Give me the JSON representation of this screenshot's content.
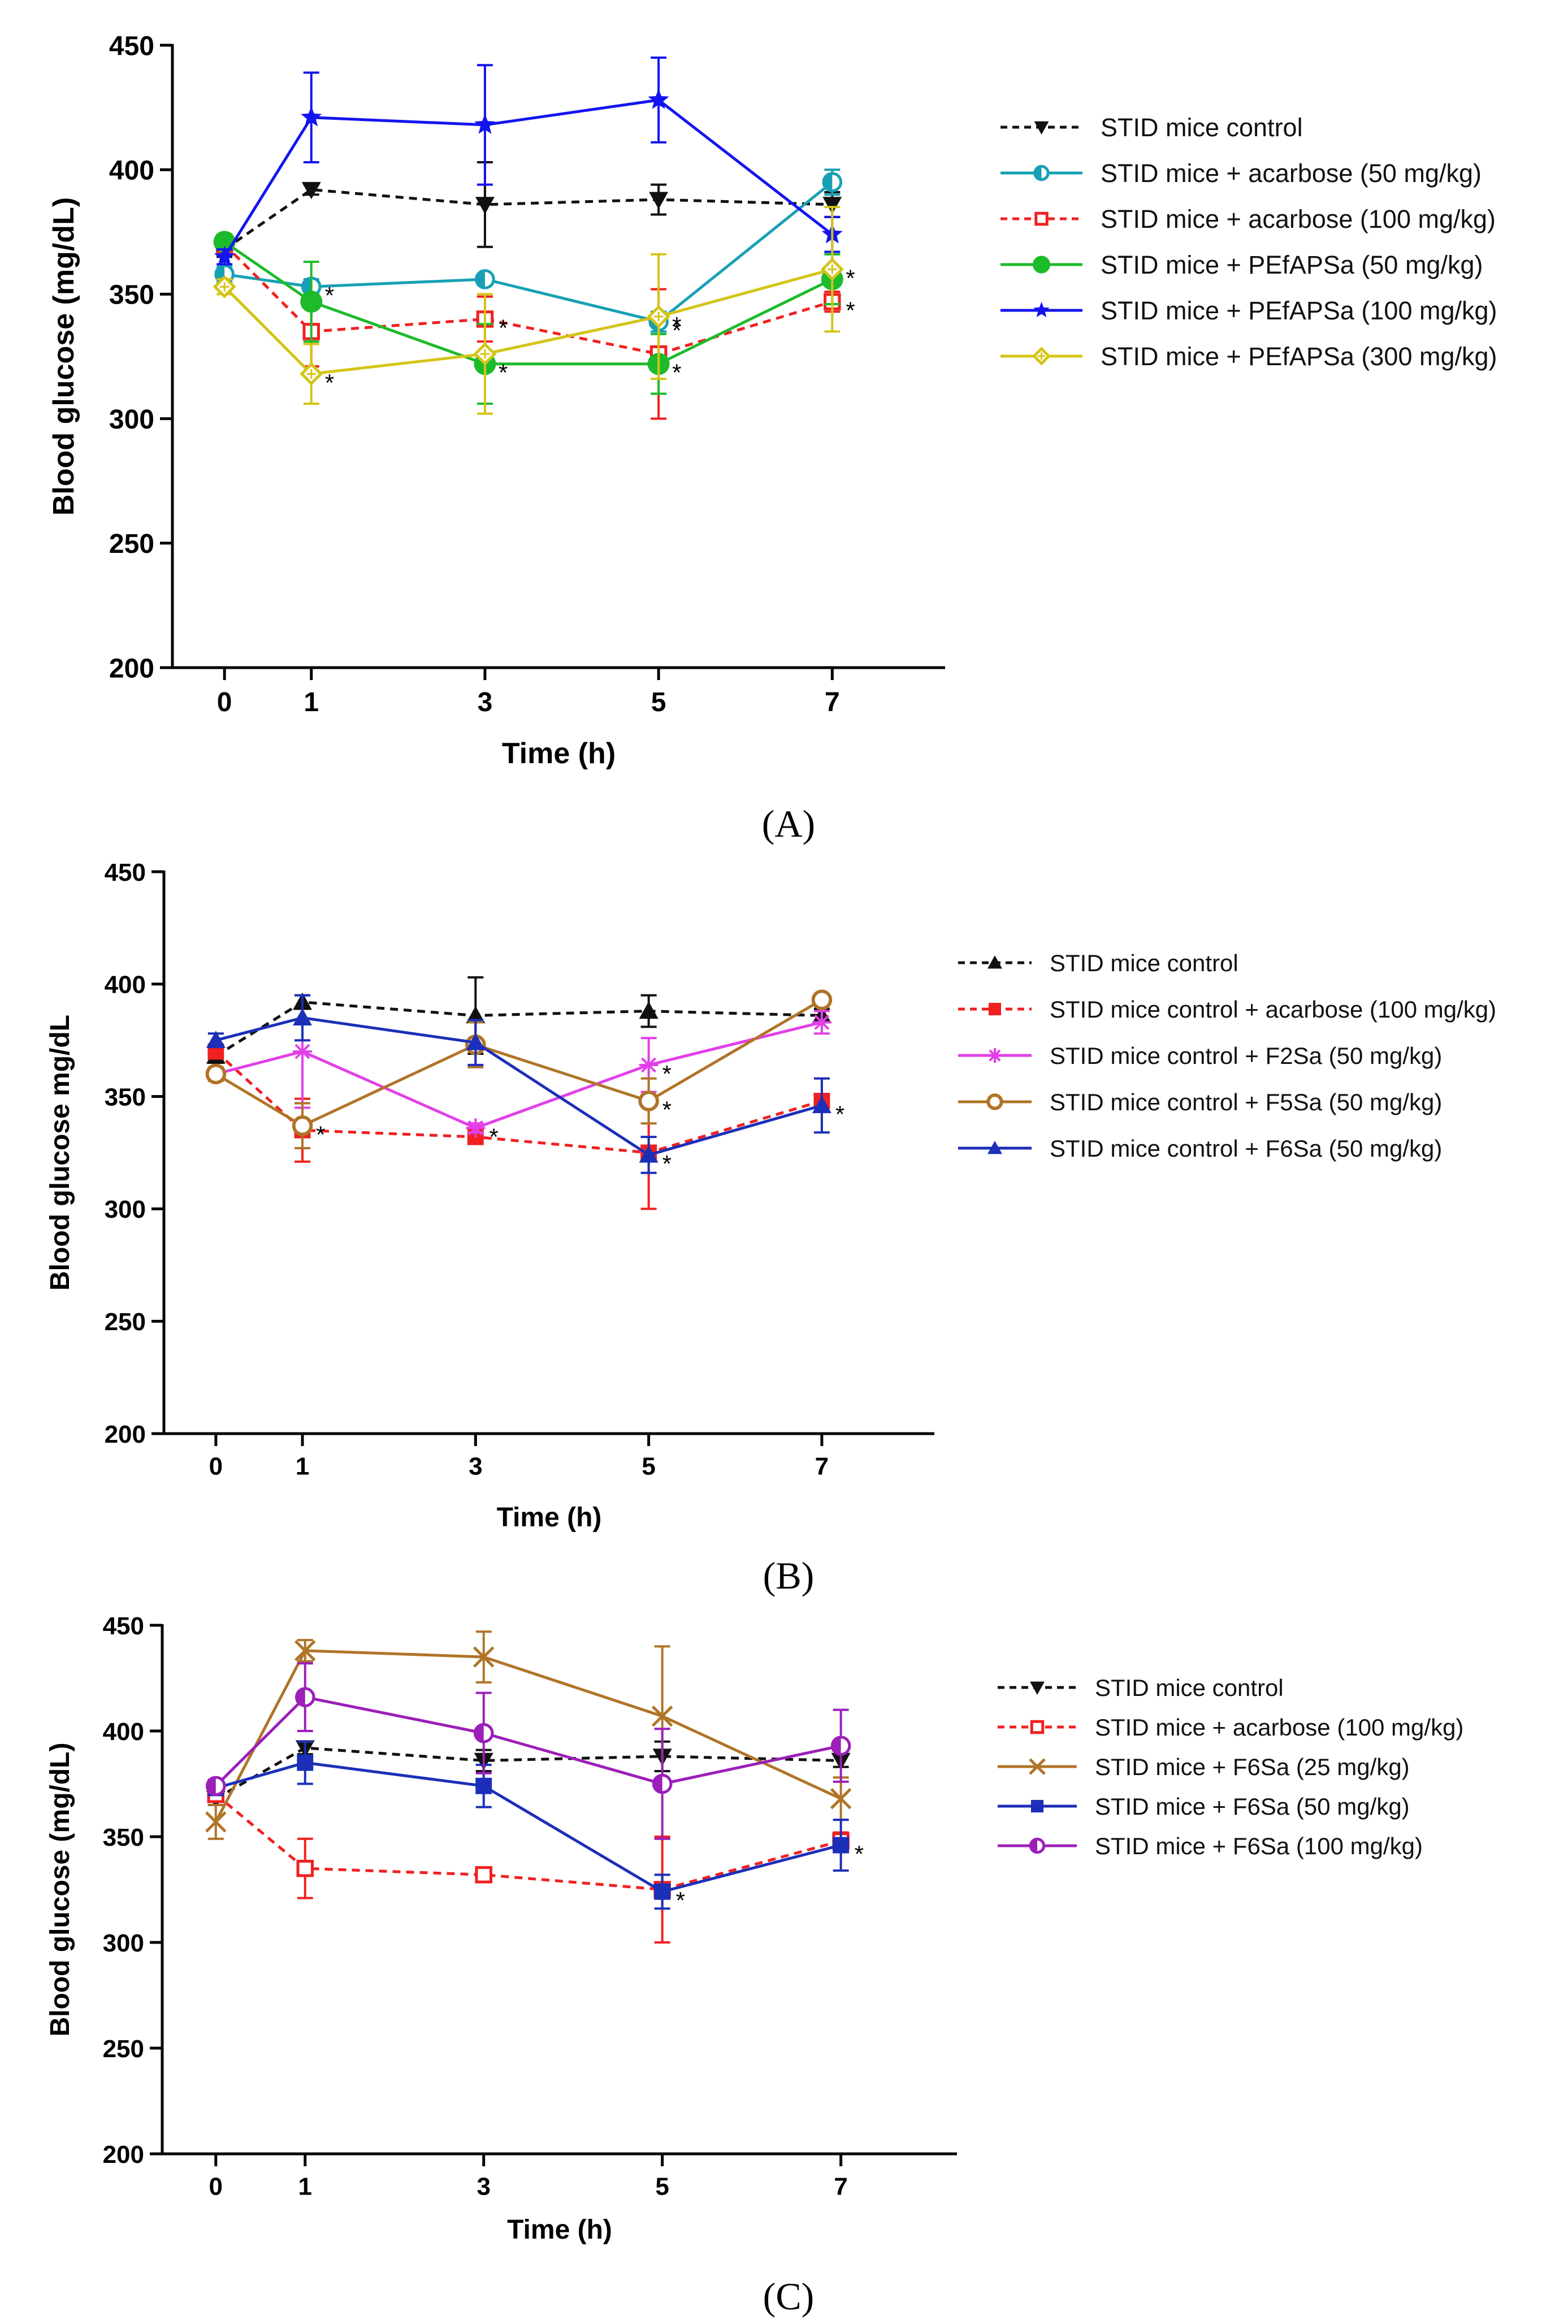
{
  "figure": {
    "panels": [
      "A",
      "B",
      "C"
    ]
  },
  "chart_data": [
    {
      "panel": "A",
      "panel_label": "(A)",
      "type": "line",
      "xlabel": "Time (h)",
      "ylabel": "Blood glucose (mg/dL)",
      "x": [
        0,
        1,
        3,
        5,
        7
      ],
      "x_ticks": [
        "0",
        "1",
        "3",
        "5",
        "7"
      ],
      "y_ticks": [
        "200",
        "250",
        "300",
        "350",
        "400",
        "450"
      ],
      "ylim": [
        200,
        450
      ],
      "series": [
        {
          "name": "STID mice control",
          "color": "#111111",
          "dash": true,
          "marker": "triangle-down",
          "values": [
            368,
            392,
            386,
            388,
            386
          ],
          "err": [
            3,
            2,
            17,
            6,
            5
          ],
          "sig": [
            false,
            false,
            false,
            false,
            false
          ]
        },
        {
          "name": "STID mice + acarbose (50 mg/kg)",
          "color": "#17A0B5",
          "dash": false,
          "marker": "circle-half",
          "values": [
            358,
            353,
            356,
            339,
            395
          ],
          "err": [
            3,
            3,
            2,
            4,
            5
          ],
          "sig": [
            false,
            true,
            false,
            true,
            false
          ]
        },
        {
          "name": "STID mice + acarbose (100 mg/kg)",
          "color": "#F02020",
          "dash": true,
          "marker": "square-open",
          "values": [
            370,
            335,
            340,
            326,
            347
          ],
          "err": [
            3,
            14,
            9,
            26,
            4
          ],
          "sig": [
            false,
            false,
            true,
            false,
            true
          ]
        },
        {
          "name": "STID mice + PEfAPSa (50 mg/kg)",
          "color": "#1DBB2B",
          "dash": false,
          "marker": "circle",
          "values": [
            371,
            347,
            322,
            322,
            356
          ],
          "err": [
            3,
            16,
            16,
            12,
            10
          ],
          "sig": [
            false,
            false,
            true,
            true,
            false
          ]
        },
        {
          "name": "STID mice + PEfAPSa (100 mg/kg)",
          "color": "#1414F0",
          "dash": false,
          "marker": "star",
          "values": [
            365,
            421,
            418,
            428,
            374
          ],
          "err": [
            3,
            18,
            24,
            17,
            7
          ],
          "sig": [
            false,
            false,
            false,
            false,
            false
          ]
        },
        {
          "name": "STID mice + PEfAPSa (300 mg/kg)",
          "color": "#D4C418",
          "dash": false,
          "marker": "diamond-open",
          "values": [
            353,
            318,
            326,
            341,
            360
          ],
          "err": [
            3,
            12,
            24,
            25,
            25
          ],
          "sig": [
            false,
            true,
            false,
            true,
            true
          ]
        }
      ]
    },
    {
      "panel": "B",
      "panel_label": "(B)",
      "type": "line",
      "xlabel": "Time (h)",
      "ylabel": "Blood glucose mg/dL",
      "x": [
        0,
        1,
        3,
        5,
        7
      ],
      "x_ticks": [
        "0",
        "1",
        "3",
        "5",
        "7"
      ],
      "y_ticks": [
        "200",
        "250",
        "300",
        "350",
        "400",
        "450"
      ],
      "ylim": [
        200,
        450
      ],
      "series": [
        {
          "name": "STID mice control",
          "color": "#111111",
          "dash": true,
          "marker": "triangle",
          "values": [
            368,
            392,
            386,
            388,
            386
          ],
          "err": [
            3,
            3,
            17,
            7,
            3
          ],
          "sig": [
            false,
            false,
            false,
            false,
            false
          ]
        },
        {
          "name": "STID mice control + acarbose (100 mg/kg)",
          "color": "#F02020",
          "dash": true,
          "marker": "square",
          "values": [
            370,
            335,
            332,
            325,
            348
          ],
          "err": [
            3,
            14,
            3,
            25,
            3
          ],
          "sig": [
            false,
            false,
            false,
            false,
            false
          ]
        },
        {
          "name": "STID mice control + F2Sa (50 mg/kg)",
          "color": "#E23FE8",
          "dash": false,
          "marker": "asterisk",
          "values": [
            360,
            370,
            336,
            364,
            383
          ],
          "err": [
            3,
            25,
            2,
            12,
            5
          ],
          "sig": [
            false,
            false,
            true,
            true,
            false
          ]
        },
        {
          "name": "STID mice control + F5Sa (50 mg/kg)",
          "color": "#B07427",
          "dash": false,
          "marker": "circle-open",
          "values": [
            360,
            337,
            373,
            348,
            393
          ],
          "err": [
            3,
            10,
            10,
            10,
            2
          ],
          "sig": [
            false,
            true,
            false,
            true,
            false
          ]
        },
        {
          "name": "STID mice control + F6Sa (50 mg/kg)",
          "color": "#1C2FB8",
          "dash": false,
          "marker": "triangle",
          "values": [
            375,
            385,
            374,
            324,
            346
          ],
          "err": [
            3,
            10,
            10,
            8,
            12
          ],
          "sig": [
            false,
            false,
            false,
            true,
            true
          ]
        }
      ]
    },
    {
      "panel": "C",
      "panel_label": "(C)",
      "type": "line",
      "xlabel": "Time (h)",
      "ylabel": "Blood glucose (mg/dL)",
      "x": [
        0,
        1,
        3,
        5,
        7
      ],
      "x_ticks": [
        "0",
        "1",
        "3",
        "5",
        "7"
      ],
      "y_ticks": [
        "200",
        "250",
        "300",
        "350",
        "400",
        "450"
      ],
      "ylim": [
        200,
        450
      ],
      "series": [
        {
          "name": "STID mice control",
          "color": "#111111",
          "dash": true,
          "marker": "triangle-down",
          "values": [
            368,
            392,
            386,
            388,
            386
          ],
          "err": [
            3,
            3,
            5,
            7,
            3
          ],
          "sig": [
            false,
            false,
            false,
            false,
            false
          ]
        },
        {
          "name": "STID mice + acarbose (100 mg/kg)",
          "color": "#F02020",
          "dash": true,
          "marker": "square-open",
          "values": [
            370,
            335,
            332,
            325,
            348
          ],
          "err": [
            3,
            14,
            2,
            25,
            4
          ],
          "sig": [
            false,
            false,
            false,
            false,
            false
          ]
        },
        {
          "name": "STID mice + F6Sa (25 mg/kg)",
          "color": "#B07427",
          "dash": false,
          "marker": "x",
          "values": [
            357,
            438,
            435,
            407,
            368
          ],
          "err": [
            8,
            5,
            12,
            33,
            10
          ],
          "sig": [
            false,
            false,
            false,
            false,
            false
          ]
        },
        {
          "name": "STID mice + F6Sa (50 mg/kg)",
          "color": "#1C2FB8",
          "dash": false,
          "marker": "square",
          "values": [
            373,
            385,
            374,
            324,
            346
          ],
          "err": [
            3,
            10,
            10,
            8,
            12
          ],
          "sig": [
            false,
            false,
            false,
            true,
            true
          ]
        },
        {
          "name": "STID mice + F6Sa (100 mg/kg)",
          "color": "#9B1FB8",
          "dash": false,
          "marker": "circle-half",
          "values": [
            374,
            416,
            399,
            375,
            393
          ],
          "err": [
            3,
            16,
            19,
            26,
            17
          ],
          "sig": [
            false,
            false,
            false,
            false,
            false
          ]
        }
      ]
    }
  ]
}
